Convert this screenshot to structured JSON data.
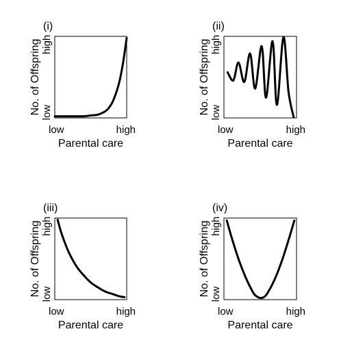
{
  "chart_data": [
    {
      "type": "line",
      "panel_label": "(i)",
      "xlabel": "Parental care",
      "ylabel": "No. of Offspring",
      "x_ticks": [
        "low",
        "high"
      ],
      "y_ticks": [
        "low",
        "high"
      ],
      "xlim": [
        0,
        1
      ],
      "ylim": [
        0,
        1
      ],
      "grid": false,
      "x": [
        0,
        0.1,
        0.2,
        0.3,
        0.4,
        0.5,
        0.6,
        0.7,
        0.75,
        0.8,
        0.85,
        0.9,
        0.95,
        1.0
      ],
      "y": [
        0.02,
        0.02,
        0.02,
        0.02,
        0.02,
        0.03,
        0.04,
        0.08,
        0.12,
        0.19,
        0.3,
        0.45,
        0.68,
        0.98
      ]
    },
    {
      "type": "line",
      "panel_label": "(ii)",
      "xlabel": "Parental care",
      "ylabel": "No. of Offspring",
      "x_ticks": [
        "low",
        "high"
      ],
      "y_ticks": [
        "low",
        "high"
      ],
      "xlim": [
        0,
        1
      ],
      "ylim": [
        0,
        1
      ],
      "grid": false,
      "x": [
        0.05,
        0.13,
        0.2,
        0.28,
        0.36,
        0.43,
        0.52,
        0.58,
        0.67,
        0.73,
        0.82,
        0.89,
        0.96
      ],
      "y": [
        0.56,
        0.46,
        0.68,
        0.44,
        0.79,
        0.36,
        0.88,
        0.25,
        0.94,
        0.16,
        0.99,
        0.32,
        0.01
      ]
    },
    {
      "type": "line",
      "panel_label": "(iii)",
      "xlabel": "Parental care",
      "ylabel": "No. of Offspring",
      "x_ticks": [
        "low",
        "high"
      ],
      "y_ticks": [
        "low",
        "high"
      ],
      "xlim": [
        0,
        1
      ],
      "ylim": [
        0,
        1
      ],
      "grid": false,
      "x": [
        0.04,
        0.08,
        0.13,
        0.2,
        0.3,
        0.4,
        0.5,
        0.6,
        0.7,
        0.8,
        0.9,
        0.97
      ],
      "y": [
        0.98,
        0.85,
        0.72,
        0.57,
        0.41,
        0.3,
        0.21,
        0.15,
        0.1,
        0.07,
        0.04,
        0.03
      ]
    },
    {
      "type": "line",
      "panel_label": "(iv)",
      "xlabel": "Parental care",
      "ylabel": "No. of Offspring",
      "x_ticks": [
        "low",
        "high"
      ],
      "y_ticks": [
        "low",
        "high"
      ],
      "xlim": [
        0,
        1
      ],
      "ylim": [
        0,
        1
      ],
      "grid": false,
      "x": [
        0.04,
        0.1,
        0.2,
        0.3,
        0.4,
        0.45,
        0.5,
        0.55,
        0.6,
        0.7,
        0.8,
        0.9,
        0.97
      ],
      "y": [
        0.97,
        0.78,
        0.5,
        0.27,
        0.09,
        0.04,
        0.02,
        0.03,
        0.08,
        0.25,
        0.48,
        0.76,
        0.97
      ]
    }
  ]
}
